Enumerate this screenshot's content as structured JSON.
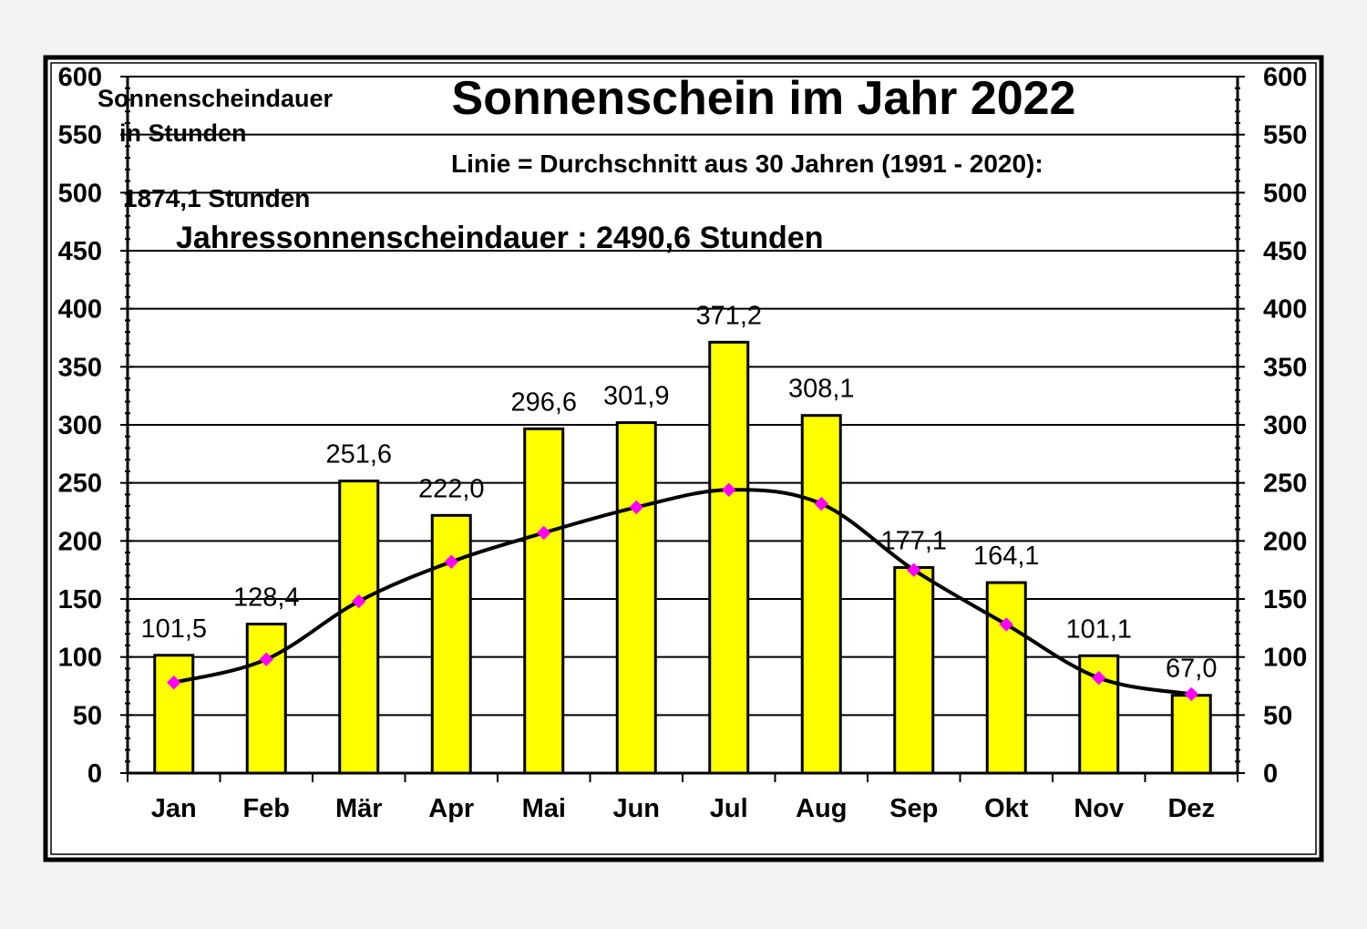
{
  "chart_data": {
    "type": "bar",
    "title": "Sonnenschein im Jahr 2022",
    "ylabel_line1": "Sonnenscheindauer",
    "ylabel_line2": "in Stunden",
    "average_note": "Linie = Durchschnitt aus 30 Jahren (1991 - 2020):",
    "average_total": "1874,1 Stunden",
    "annual_total": "Jahressonnenscheindauer :  2490,6 Stunden",
    "categories": [
      "Jan",
      "Feb",
      "Mär",
      "Apr",
      "Mai",
      "Jun",
      "Jul",
      "Aug",
      "Sep",
      "Okt",
      "Nov",
      "Dez"
    ],
    "series": [
      {
        "type": "bar",
        "values": [
          101.5,
          128.4,
          251.6,
          222.0,
          296.6,
          301.9,
          371.2,
          308.1,
          177.1,
          164.1,
          101.1,
          67.0
        ],
        "labels": [
          "101,5",
          "128,4",
          "251,6",
          "222,0",
          "296,6",
          "301,9",
          "371,2",
          "308,1",
          "177,1",
          "164,1",
          "101,1",
          "67,0"
        ]
      },
      {
        "type": "line",
        "values": [
          78,
          98,
          148,
          182,
          207,
          229,
          244,
          232,
          175,
          128,
          82,
          68
        ]
      }
    ],
    "ylim": [
      0,
      600
    ],
    "yticks": [
      0,
      50,
      100,
      150,
      200,
      250,
      300,
      350,
      400,
      450,
      500,
      550,
      600
    ],
    "grid": true,
    "colors": {
      "bar_fill": "#ffff00",
      "bar_stroke": "#000000",
      "line": "#000000",
      "marker": "#ff00ff",
      "plot_bg": "#ffffff",
      "page_bg": "#f2f2f2"
    }
  }
}
